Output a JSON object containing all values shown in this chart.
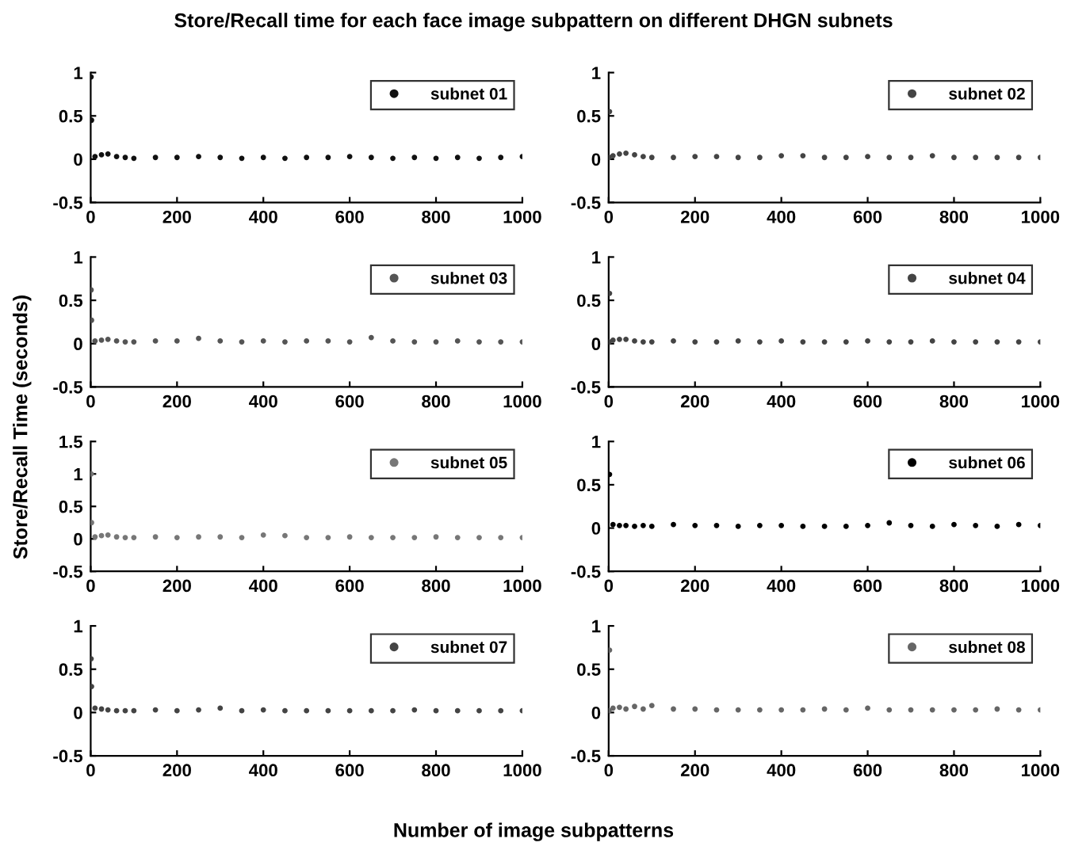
{
  "chart_data": [
    {
      "type": "scatter",
      "title": "Store/Recall time for each face image subpattern on different DHGN subnets",
      "xlabel": "Number of image subpatterns",
      "ylabel": "Store/Recall Time (seconds)",
      "x": [
        1,
        2,
        10,
        25,
        40,
        60,
        80,
        100,
        150,
        200,
        250,
        300,
        350,
        400,
        450,
        500,
        550,
        600,
        650,
        700,
        750,
        800,
        850,
        900,
        950,
        1000
      ],
      "xlim": [
        0,
        1000
      ],
      "xticks": [
        0,
        200,
        400,
        600,
        800,
        1000
      ],
      "ylim": [
        -0.5,
        1
      ],
      "yticks": [
        -0.5,
        0,
        0.5,
        1
      ],
      "marker": "circle",
      "legend": "top right",
      "grid": false,
      "series": [
        {
          "name": "subnet 01",
          "color": "#111111",
          "values": [
            0.95,
            0.45,
            0.03,
            0.05,
            0.06,
            0.03,
            0.02,
            0.01,
            0.02,
            0.02,
            0.03,
            0.02,
            0.01,
            0.02,
            0.01,
            0.02,
            0.02,
            0.03,
            0.02,
            0.01,
            0.02,
            0.01,
            0.02,
            0.01,
            0.02,
            0.03
          ]
        }
      ]
    },
    {
      "type": "scatter",
      "x": [
        1,
        2,
        10,
        25,
        40,
        60,
        80,
        100,
        150,
        200,
        250,
        300,
        350,
        400,
        450,
        500,
        550,
        600,
        650,
        700,
        750,
        800,
        850,
        900,
        950,
        1000
      ],
      "xlim": [
        0,
        1000
      ],
      "xticks": [
        0,
        200,
        400,
        600,
        800,
        1000
      ],
      "ylim": [
        -0.5,
        1
      ],
      "yticks": [
        -0.5,
        0,
        0.5,
        1
      ],
      "marker": "circle",
      "legend": "top right",
      "grid": false,
      "series": [
        {
          "name": "subnet 02",
          "color": "#444444",
          "values": [
            0.02,
            0.55,
            0.04,
            0.06,
            0.07,
            0.05,
            0.03,
            0.02,
            0.02,
            0.03,
            0.03,
            0.02,
            0.02,
            0.04,
            0.04,
            0.02,
            0.02,
            0.03,
            0.02,
            0.02,
            0.04,
            0.02,
            0.02,
            0.02,
            0.02,
            0.02
          ]
        }
      ]
    },
    {
      "type": "scatter",
      "x": [
        1,
        2,
        10,
        25,
        40,
        60,
        80,
        100,
        150,
        200,
        250,
        300,
        350,
        400,
        450,
        500,
        550,
        600,
        650,
        700,
        750,
        800,
        850,
        900,
        950,
        1000
      ],
      "xlim": [
        0,
        1000
      ],
      "xticks": [
        0,
        200,
        400,
        600,
        800,
        1000
      ],
      "ylim": [
        -0.5,
        1
      ],
      "yticks": [
        -0.5,
        0,
        0.5,
        1
      ],
      "marker": "circle",
      "legend": "top right",
      "grid": false,
      "series": [
        {
          "name": "subnet 03",
          "color": "#555555",
          "values": [
            0.62,
            0.27,
            0.03,
            0.04,
            0.05,
            0.03,
            0.02,
            0.02,
            0.03,
            0.03,
            0.06,
            0.03,
            0.02,
            0.03,
            0.02,
            0.03,
            0.03,
            0.02,
            0.07,
            0.03,
            0.02,
            0.02,
            0.03,
            0.02,
            0.02,
            0.02
          ]
        }
      ]
    },
    {
      "type": "scatter",
      "x": [
        1,
        2,
        10,
        25,
        40,
        60,
        80,
        100,
        150,
        200,
        250,
        300,
        350,
        400,
        450,
        500,
        550,
        600,
        650,
        700,
        750,
        800,
        850,
        900,
        950,
        1000
      ],
      "xlim": [
        0,
        1000
      ],
      "xticks": [
        0,
        200,
        400,
        600,
        800,
        1000
      ],
      "ylim": [
        -0.5,
        1
      ],
      "yticks": [
        -0.5,
        0,
        0.5,
        1
      ],
      "marker": "circle",
      "legend": "top right",
      "grid": false,
      "series": [
        {
          "name": "subnet 04",
          "color": "#444444",
          "values": [
            0.02,
            0.58,
            0.04,
            0.05,
            0.05,
            0.03,
            0.02,
            0.02,
            0.03,
            0.02,
            0.02,
            0.03,
            0.02,
            0.03,
            0.02,
            0.02,
            0.02,
            0.03,
            0.02,
            0.02,
            0.03,
            0.02,
            0.02,
            0.02,
            0.02,
            0.02
          ]
        }
      ]
    },
    {
      "type": "scatter",
      "x": [
        1,
        2,
        10,
        25,
        40,
        60,
        80,
        100,
        150,
        200,
        250,
        300,
        350,
        400,
        450,
        500,
        550,
        600,
        650,
        700,
        750,
        800,
        850,
        900,
        950,
        1000
      ],
      "xlim": [
        0,
        1000
      ],
      "xticks": [
        0,
        200,
        400,
        600,
        800,
        1000
      ],
      "ylim": [
        -0.5,
        1.5
      ],
      "yticks": [
        -0.5,
        0,
        0.5,
        1,
        1.5
      ],
      "marker": "circle",
      "legend": "top right",
      "grid": false,
      "series": [
        {
          "name": "subnet 05",
          "color": "#777777",
          "values": [
            1.0,
            0.25,
            0.03,
            0.05,
            0.06,
            0.03,
            0.02,
            0.02,
            0.03,
            0.02,
            0.03,
            0.03,
            0.02,
            0.06,
            0.05,
            0.02,
            0.02,
            0.03,
            0.02,
            0.02,
            0.02,
            0.03,
            0.02,
            0.02,
            0.02,
            0.02
          ]
        }
      ]
    },
    {
      "type": "scatter",
      "x": [
        2,
        10,
        25,
        40,
        60,
        80,
        100,
        150,
        200,
        250,
        300,
        350,
        400,
        450,
        500,
        550,
        600,
        650,
        700,
        750,
        800,
        850,
        900,
        950,
        1000
      ],
      "xlim": [
        0,
        1000
      ],
      "xticks": [
        0,
        200,
        400,
        600,
        800,
        1000
      ],
      "ylim": [
        -0.5,
        1
      ],
      "yticks": [
        -0.5,
        0,
        0.5,
        1
      ],
      "marker": "circle",
      "legend": "top right",
      "grid": false,
      "series": [
        {
          "name": "subnet 06",
          "color": "#000000",
          "values": [
            0.62,
            0.04,
            0.03,
            0.03,
            0.02,
            0.03,
            0.02,
            0.04,
            0.03,
            0.03,
            0.02,
            0.03,
            0.03,
            0.02,
            0.02,
            0.02,
            0.03,
            0.06,
            0.03,
            0.02,
            0.04,
            0.03,
            0.02,
            0.04,
            0.03
          ]
        }
      ]
    },
    {
      "type": "scatter",
      "x": [
        1,
        2,
        10,
        25,
        40,
        60,
        80,
        100,
        150,
        200,
        250,
        300,
        350,
        400,
        450,
        500,
        550,
        600,
        650,
        700,
        750,
        800,
        850,
        900,
        950,
        1000
      ],
      "xlim": [
        0,
        1000
      ],
      "xticks": [
        0,
        200,
        400,
        600,
        800,
        1000
      ],
      "ylim": [
        -0.5,
        1
      ],
      "yticks": [
        -0.5,
        0,
        0.5,
        1
      ],
      "marker": "circle",
      "legend": "top right",
      "grid": false,
      "series": [
        {
          "name": "subnet 07",
          "color": "#444444",
          "values": [
            0.62,
            0.3,
            0.05,
            0.04,
            0.03,
            0.02,
            0.02,
            0.02,
            0.03,
            0.02,
            0.03,
            0.05,
            0.02,
            0.03,
            0.02,
            0.02,
            0.02,
            0.02,
            0.02,
            0.02,
            0.03,
            0.02,
            0.02,
            0.02,
            0.02,
            0.02
          ]
        }
      ]
    },
    {
      "type": "scatter",
      "x": [
        1,
        2,
        10,
        25,
        40,
        60,
        80,
        100,
        150,
        200,
        250,
        300,
        350,
        400,
        450,
        500,
        550,
        600,
        650,
        700,
        750,
        800,
        850,
        900,
        950,
        1000
      ],
      "xlim": [
        0,
        1000
      ],
      "xticks": [
        0,
        200,
        400,
        600,
        800,
        1000
      ],
      "ylim": [
        -0.5,
        1
      ],
      "yticks": [
        -0.5,
        0,
        0.5,
        1
      ],
      "marker": "circle",
      "legend": "top right",
      "grid": false,
      "series": [
        {
          "name": "subnet 08",
          "color": "#666666",
          "values": [
            0.02,
            0.72,
            0.05,
            0.06,
            0.04,
            0.07,
            0.04,
            0.08,
            0.04,
            0.04,
            0.03,
            0.03,
            0.03,
            0.03,
            0.03,
            0.04,
            0.03,
            0.05,
            0.03,
            0.03,
            0.03,
            0.03,
            0.03,
            0.04,
            0.03,
            0.03
          ]
        }
      ]
    }
  ]
}
